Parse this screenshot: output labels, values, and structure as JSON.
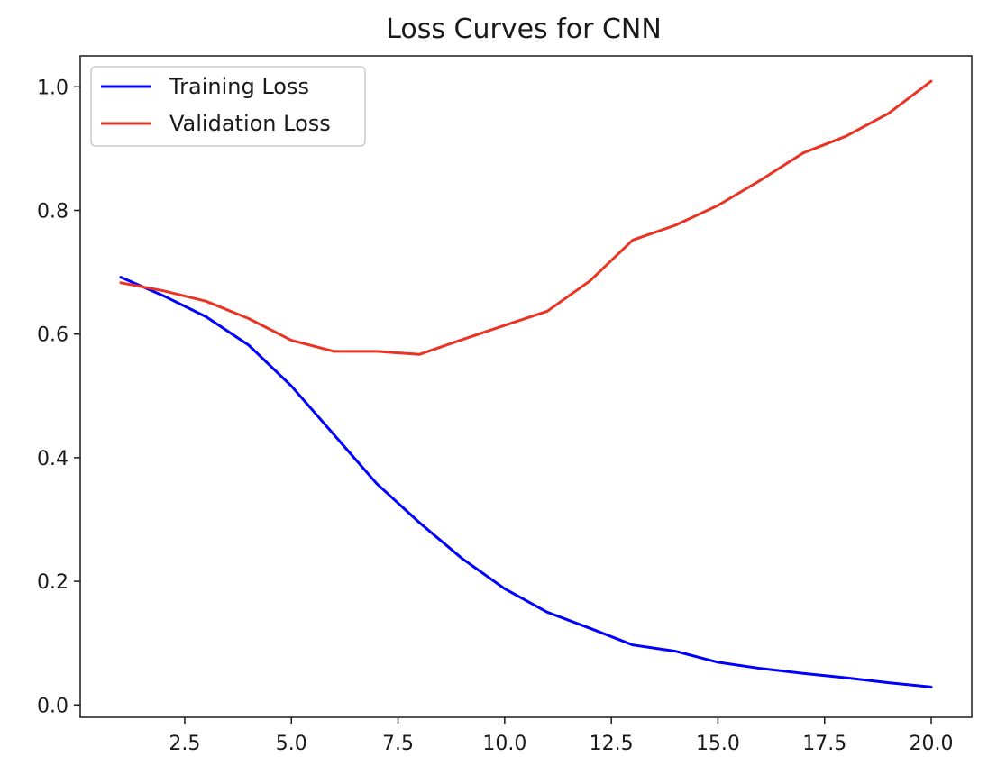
{
  "chart_data": {
    "type": "line",
    "title": "Loss Curves for CNN",
    "xlabel": "",
    "ylabel": "",
    "x": [
      1,
      2,
      3,
      4,
      5,
      6,
      7,
      8,
      9,
      10,
      11,
      12,
      13,
      14,
      15,
      16,
      17,
      18,
      19,
      20
    ],
    "series": [
      {
        "name": "Training Loss",
        "color": "#0000ff",
        "values": [
          0.692,
          0.662,
          0.628,
          0.582,
          0.516,
          0.437,
          0.358,
          0.295,
          0.237,
          0.188,
          0.15,
          0.124,
          0.097,
          0.087,
          0.069,
          0.059,
          0.051,
          0.044,
          0.036,
          0.029
        ]
      },
      {
        "name": "Validation Loss",
        "color": "#ea3323",
        "values": [
          0.683,
          0.67,
          0.653,
          0.625,
          0.59,
          0.572,
          0.572,
          0.567,
          0.591,
          0.614,
          0.637,
          0.686,
          0.752,
          0.776,
          0.808,
          0.849,
          0.893,
          0.92,
          0.957,
          1.009
        ]
      }
    ],
    "xlim": [
      0.05,
      20.95
    ],
    "ylim": [
      -0.02,
      1.05
    ],
    "x_ticks": [
      2.5,
      5.0,
      7.5,
      10.0,
      12.5,
      15.0,
      17.5,
      20.0
    ],
    "x_tick_labels": [
      "2.5",
      "5.0",
      "7.5",
      "10.0",
      "12.5",
      "15.0",
      "17.5",
      "20.0"
    ],
    "y_ticks": [
      0.0,
      0.2,
      0.4,
      0.6,
      0.8,
      1.0
    ],
    "y_tick_labels": [
      "0.0",
      "0.2",
      "0.4",
      "0.6",
      "0.8",
      "1.0"
    ],
    "grid": false,
    "legend_position": "top-left"
  }
}
